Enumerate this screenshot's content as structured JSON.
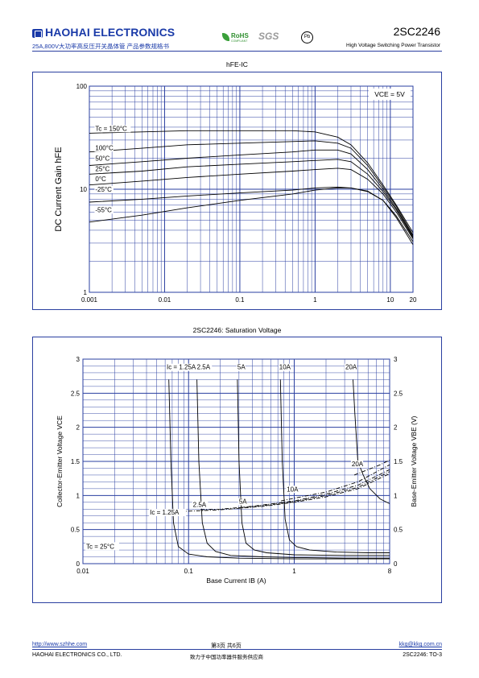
{
  "header": {
    "brand": "HAOHAI ELECTRONICS",
    "subtitle_cn": "25A,800V大功率高反压开关晶体管 产品参数规格书",
    "part_number": "2SC2246",
    "description": "High Voltage Switching Power Transistor",
    "rohs": "RoHS",
    "rohs_sub": "COMPLIANT",
    "sgs": "SGS",
    "pb": "Pb"
  },
  "footer": {
    "website": "http://www.szhhe.com",
    "page": "第3页 共6页",
    "email": "kkg@kkg.com.cn",
    "company": "HAOHAI ELECTRONICS CO., LTD.",
    "slogan": "致力于中国功率器件服务供应商",
    "doc_ref": "2SC2246: TO-3"
  },
  "colors": {
    "grid": "#2a3fa0",
    "curve": "#000000",
    "frame": "#2a3fa0"
  },
  "chart_data": [
    {
      "type": "line",
      "title": "hFE-IC",
      "ylabel": "DC Current Gain hFE",
      "x_scale": "log",
      "y_scale": "log",
      "xlim": [
        0.001,
        20
      ],
      "ylim": [
        1,
        100
      ],
      "x_tick_labels": [
        {
          "v": 0.001,
          "t": "0.001"
        },
        {
          "v": 0.01,
          "t": "0.01"
        },
        {
          "v": 0.1,
          "t": "0.1"
        },
        {
          "v": 1,
          "t": "1"
        },
        {
          "v": 10,
          "t": "10"
        },
        {
          "v": 20,
          "t": "20"
        }
      ],
      "y_tick_labels": [
        {
          "v": 1,
          "t": "1"
        },
        {
          "v": 10,
          "t": "10"
        },
        {
          "v": 100,
          "t": "100"
        }
      ],
      "annotation": "VCE = 5V",
      "series": [
        {
          "name": "Tc = 150°C",
          "label_at": [
            0.0012,
            37
          ],
          "x": [
            0.001,
            0.005,
            0.02,
            0.1,
            0.5,
            1,
            2,
            3,
            5,
            8,
            12,
            20
          ],
          "y": [
            35,
            36,
            37,
            37,
            37,
            36,
            32,
            27,
            18,
            11,
            7,
            3.8
          ]
        },
        {
          "name": "100°C",
          "label_at": [
            0.0012,
            24
          ],
          "x": [
            0.001,
            0.005,
            0.02,
            0.1,
            0.5,
            1,
            2,
            3,
            5,
            8,
            12,
            20
          ],
          "y": [
            23,
            25,
            27,
            28,
            29,
            29.5,
            28,
            25,
            17,
            10.5,
            6.8,
            3.6
          ]
        },
        {
          "name": "50°C",
          "label_at": [
            0.0012,
            19
          ],
          "x": [
            0.001,
            0.005,
            0.02,
            0.1,
            0.5,
            1,
            2,
            3,
            5,
            8,
            12,
            20
          ],
          "y": [
            17,
            18.5,
            20,
            21.5,
            23,
            24,
            24,
            22,
            15.5,
            10,
            6.5,
            3.5
          ]
        },
        {
          "name": "25°C",
          "label_at": [
            0.0012,
            15
          ],
          "x": [
            0.001,
            0.005,
            0.02,
            0.1,
            0.5,
            1,
            2,
            3,
            5,
            8,
            12,
            20
          ],
          "y": [
            14,
            15,
            16.5,
            17.5,
            18.5,
            19,
            19.5,
            18.5,
            14,
            9.5,
            6.3,
            3.4
          ]
        },
        {
          "name": "0°C",
          "label_at": [
            0.0012,
            12
          ],
          "x": [
            0.001,
            0.005,
            0.02,
            0.1,
            0.5,
            1,
            2,
            3,
            5,
            8,
            12,
            20
          ],
          "y": [
            11,
            12,
            13,
            14,
            15,
            15.5,
            16,
            15.5,
            12.5,
            9,
            6,
            3.3
          ]
        },
        {
          "name": "-25°C",
          "label_at": [
            0.0012,
            9.5
          ],
          "x": [
            0.001,
            0.005,
            0.02,
            0.1,
            0.5,
            1,
            2,
            3,
            5,
            8,
            12,
            20
          ],
          "y": [
            7.5,
            8,
            8.6,
            9.2,
            9.8,
            10.3,
            10.5,
            10.3,
            9.5,
            7.8,
            5.5,
            3.1
          ]
        },
        {
          "name": "-55°C",
          "label_at": [
            0.0012,
            6
          ],
          "x": [
            0.001,
            0.005,
            0.02,
            0.1,
            0.5,
            1,
            2,
            3,
            5,
            8,
            12,
            20
          ],
          "y": [
            4.8,
            5.6,
            6.6,
            7.8,
            9,
            9.8,
            10.3,
            10.3,
            9.6,
            7.8,
            5.3,
            2.9
          ]
        }
      ]
    },
    {
      "type": "line",
      "title": "2SC2246: Saturation Voltage",
      "xlabel": "Base Current IB (A)",
      "ylabel": "Collector-Emitter Voltage VCE",
      "ylabel_right": "Base-Emitter Voltage VBE (V)",
      "x_scale": "log",
      "xlim": [
        0.01,
        8
      ],
      "ylim": [
        0,
        3
      ],
      "x_tick_labels": [
        {
          "v": 0.01,
          "t": "0.01"
        },
        {
          "v": 0.1,
          "t": "0.1"
        },
        {
          "v": 1,
          "t": "1"
        },
        {
          "v": 8,
          "t": "8"
        }
      ],
      "y_tick_labels": [
        {
          "v": 0,
          "t": "0"
        },
        {
          "v": 0.5,
          "t": "0.5"
        },
        {
          "v": 1,
          "t": "1"
        },
        {
          "v": 1.5,
          "t": "1.5"
        },
        {
          "v": 2,
          "t": "2"
        },
        {
          "v": 2.5,
          "t": "2.5"
        },
        {
          "v": 3,
          "t": "3"
        }
      ],
      "annotation": "Tc = 25°C",
      "vce_series": [
        {
          "name": "Ic = 1.25A",
          "label_at": [
            0.062,
            2.85
          ],
          "x": [
            0.065,
            0.068,
            0.072,
            0.08,
            0.1,
            0.15,
            0.3,
            1,
            3,
            8
          ],
          "y": [
            2.7,
            1.5,
            0.6,
            0.25,
            0.14,
            0.1,
            0.08,
            0.07,
            0.07,
            0.07
          ]
        },
        {
          "name": "2.5A",
          "label_at": [
            0.12,
            2.85
          ],
          "x": [
            0.12,
            0.125,
            0.135,
            0.15,
            0.18,
            0.25,
            0.5,
            1,
            3,
            8
          ],
          "y": [
            2.7,
            1.5,
            0.6,
            0.3,
            0.18,
            0.12,
            0.1,
            0.09,
            0.08,
            0.08
          ]
        },
        {
          "name": "5A",
          "label_at": [
            0.29,
            2.85
          ],
          "x": [
            0.29,
            0.3,
            0.32,
            0.35,
            0.42,
            0.55,
            1,
            3,
            8
          ],
          "y": [
            2.7,
            1.5,
            0.6,
            0.3,
            0.2,
            0.16,
            0.13,
            0.12,
            0.12
          ]
        },
        {
          "name": "10A",
          "label_at": [
            0.72,
            2.85
          ],
          "x": [
            0.74,
            0.77,
            0.82,
            0.9,
            1.05,
            1.4,
            2.5,
            5,
            8
          ],
          "y": [
            2.7,
            1.5,
            0.65,
            0.35,
            0.25,
            0.2,
            0.17,
            0.16,
            0.16
          ]
        },
        {
          "name": "20A",
          "label_at": [
            3.05,
            2.85
          ],
          "x": [
            3.6,
            3.75,
            4,
            4.5,
            5.2,
            6.5,
            8
          ],
          "y": [
            2.7,
            2.2,
            1.5,
            1.3,
            1.1,
            0.95,
            0.88
          ]
        }
      ],
      "vbe_series": [
        {
          "name": "Ic = 1.25A",
          "label_at": [
            0.043,
            0.72
          ],
          "x": [
            0.07,
            0.1,
            0.2,
            0.5,
            1,
            2,
            4,
            8
          ],
          "y": [
            0.76,
            0.77,
            0.79,
            0.84,
            0.9,
            0.98,
            1.1,
            1.32
          ]
        },
        {
          "name": "2.5A",
          "label_at": [
            0.11,
            0.83
          ],
          "x": [
            0.13,
            0.2,
            0.5,
            1,
            2,
            4,
            8
          ],
          "y": [
            0.79,
            0.8,
            0.85,
            0.91,
            1,
            1.12,
            1.35
          ]
        },
        {
          "name": "5A",
          "label_at": [
            0.3,
            0.88
          ],
          "x": [
            0.3,
            0.5,
            1,
            2,
            4,
            8
          ],
          "y": [
            0.82,
            0.86,
            0.92,
            1.02,
            1.15,
            1.38
          ]
        },
        {
          "name": "10A",
          "label_at": [
            0.85,
            1.06
          ],
          "x": [
            0.75,
            1,
            2,
            4,
            8
          ],
          "y": [
            0.92,
            0.96,
            1.05,
            1.2,
            1.45
          ]
        },
        {
          "name": "20A",
          "label_at": [
            3.5,
            1.43
          ],
          "x": [
            3.7,
            5,
            6.5,
            8
          ],
          "y": [
            1.3,
            1.38,
            1.45,
            1.52
          ]
        }
      ]
    }
  ]
}
